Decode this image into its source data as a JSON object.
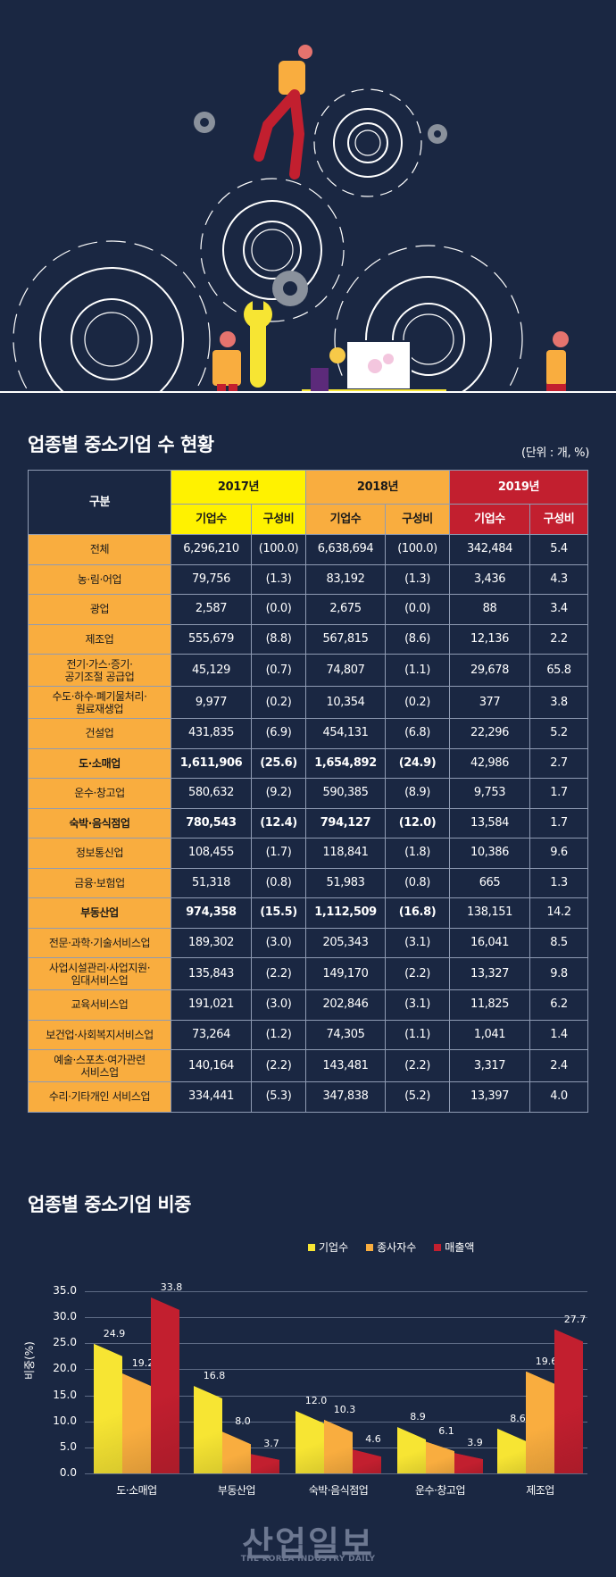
{
  "table_section": {
    "title": "업종별 중소기업 수 현황",
    "unit": "(단위 : 개, %)",
    "header": {
      "gubun": "구분",
      "years": [
        {
          "label": "2017년",
          "color": "#fff200"
        },
        {
          "label": "2018년",
          "color": "#f9ad3f"
        },
        {
          "label": "2019년",
          "color": "#c21f2f"
        }
      ],
      "sub": [
        "기업수",
        "구성비"
      ]
    },
    "rows": [
      {
        "label": "전체",
        "v": [
          "6,296,210",
          "(100.0)",
          "6,638,694",
          "(100.0)",
          "342,484",
          "5.4"
        ],
        "bold": false
      },
      {
        "label": "농·림·어업",
        "v": [
          "79,756",
          "(1.3)",
          "83,192",
          "(1.3)",
          "3,436",
          "4.3"
        ],
        "bold": false
      },
      {
        "label": "광업",
        "v": [
          "2,587",
          "(0.0)",
          "2,675",
          "(0.0)",
          "88",
          "3.4"
        ],
        "bold": false
      },
      {
        "label": "제조업",
        "v": [
          "555,679",
          "(8.8)",
          "567,815",
          "(8.6)",
          "12,136",
          "2.2"
        ],
        "bold": false
      },
      {
        "label": "전기·가스·증기·\n공기조절 공급업",
        "v": [
          "45,129",
          "(0.7)",
          "74,807",
          "(1.1)",
          "29,678",
          "65.8"
        ],
        "bold": false
      },
      {
        "label": "수도·하수·폐기물처리·\n원료재생업",
        "v": [
          "9,977",
          "(0.2)",
          "10,354",
          "(0.2)",
          "377",
          "3.8"
        ],
        "bold": false
      },
      {
        "label": "건설업",
        "v": [
          "431,835",
          "(6.9)",
          "454,131",
          "(6.8)",
          "22,296",
          "5.2"
        ],
        "bold": false
      },
      {
        "label": "도·소매업",
        "v": [
          "1,611,906",
          "(25.6)",
          "1,654,892",
          "(24.9)",
          "42,986",
          "2.7"
        ],
        "bold": true
      },
      {
        "label": "운수·창고업",
        "v": [
          "580,632",
          "(9.2)",
          "590,385",
          "(8.9)",
          "9,753",
          "1.7"
        ],
        "bold": false
      },
      {
        "label": "숙박·음식점업",
        "v": [
          "780,543",
          "(12.4)",
          "794,127",
          "(12.0)",
          "13,584",
          "1.7"
        ],
        "bold": true
      },
      {
        "label": "정보통신업",
        "v": [
          "108,455",
          "(1.7)",
          "118,841",
          "(1.8)",
          "10,386",
          "9.6"
        ],
        "bold": false
      },
      {
        "label": "금융·보험업",
        "v": [
          "51,318",
          "(0.8)",
          "51,983",
          "(0.8)",
          "665",
          "1.3"
        ],
        "bold": false
      },
      {
        "label": "부동산업",
        "v": [
          "974,358",
          "(15.5)",
          "1,112,509",
          "(16.8)",
          "138,151",
          "14.2"
        ],
        "bold": true
      },
      {
        "label": "전문·과학·기술서비스업",
        "v": [
          "189,302",
          "(3.0)",
          "205,343",
          "(3.1)",
          "16,041",
          "8.5"
        ],
        "bold": false
      },
      {
        "label": "사업시설관리·사업지원·\n임대서비스업",
        "v": [
          "135,843",
          "(2.2)",
          "149,170",
          "(2.2)",
          "13,327",
          "9.8"
        ],
        "bold": false
      },
      {
        "label": "교육서비스업",
        "v": [
          "191,021",
          "(3.0)",
          "202,846",
          "(3.1)",
          "11,825",
          "6.2"
        ],
        "bold": false
      },
      {
        "label": "보건업·사회복지서비스업",
        "v": [
          "73,264",
          "(1.2)",
          "74,305",
          "(1.1)",
          "1,041",
          "1.4"
        ],
        "bold": false
      },
      {
        "label": "예술·스포츠·여가관련\n서비스업",
        "v": [
          "140,164",
          "(2.2)",
          "143,481",
          "(2.2)",
          "3,317",
          "2.4"
        ],
        "bold": false
      },
      {
        "label": "수리·기타개인 서비스업",
        "v": [
          "334,441",
          "(5.3)",
          "347,838",
          "(5.2)",
          "13,397",
          "4.0"
        ],
        "bold": false
      }
    ]
  },
  "chart_section": {
    "title": "업종별 중소기업 비중"
  },
  "chart_data": {
    "type": "bar",
    "title": "업종별 중소기업 비중",
    "xlabel": "",
    "ylabel": "비중(%)",
    "ylim": [
      0,
      35
    ],
    "yticks": [
      "35.0",
      "30.0",
      "25.0",
      "20.0",
      "15.0",
      "10.0",
      "5.0",
      "0.0"
    ],
    "grid": true,
    "legend_position": "top-right",
    "categories": [
      "도·소매업",
      "부동산업",
      "숙박·음식점업",
      "운수·창고업",
      "제조업"
    ],
    "series": [
      {
        "name": "기업수",
        "color": "#f7e533",
        "values": [
          24.9,
          16.8,
          12.0,
          8.9,
          8.6
        ]
      },
      {
        "name": "종사자수",
        "color": "#f9ad3f",
        "values": [
          19.2,
          8.0,
          10.3,
          6.1,
          19.6
        ]
      },
      {
        "name": "매출액",
        "color": "#c21f2f",
        "values": [
          33.8,
          3.7,
          4.6,
          3.9,
          27.7
        ]
      }
    ]
  },
  "watermark": {
    "name": "산업일보",
    "sub": "THE KOREA INDUSTRY DAILY"
  }
}
